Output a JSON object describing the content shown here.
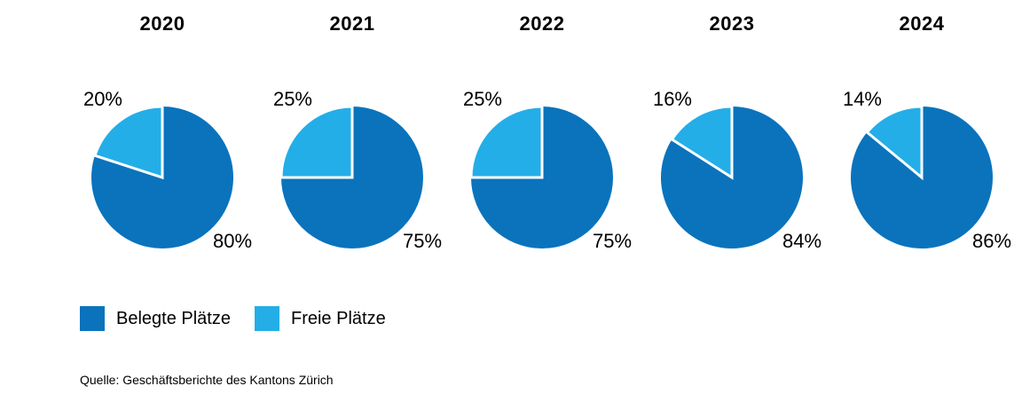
{
  "source": "Quelle: Geschäftsberichte des Kantons Zürich",
  "colors": {
    "belegte": "#0a73bc",
    "freie": "#23aee8",
    "separator": "#ffffff",
    "text": "#000000",
    "background": "#ffffff"
  },
  "chart_data": {
    "type": "pie",
    "title": "",
    "categories": [
      "2020",
      "2021",
      "2022",
      "2023",
      "2024"
    ],
    "series": [
      {
        "name": "Belegte Plätze",
        "color": "#0a73bc",
        "values": [
          80,
          75,
          75,
          84,
          86
        ]
      },
      {
        "name": "Freie Plätze",
        "color": "#23aee8",
        "values": [
          20,
          25,
          25,
          16,
          14
        ]
      }
    ],
    "value_format": "percent",
    "label_suffix": "%",
    "layout": {
      "charts_per_row": 5,
      "slice_start": "12-o'clock",
      "freie_sweep": "counterclockwise",
      "separator_stroke": "white",
      "legend_position": "bottom-left",
      "data_labels": "outside: Freie top-left, Belegte bottom-right"
    }
  }
}
